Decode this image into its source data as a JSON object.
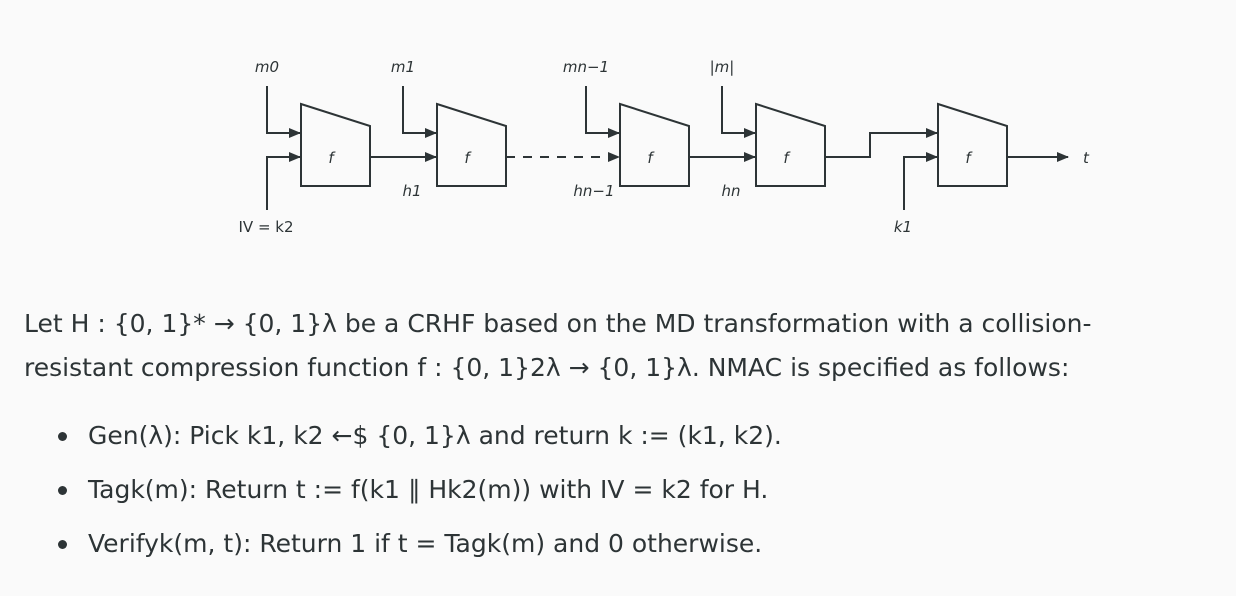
{
  "diagram": {
    "inputs": [
      "m0",
      "m1",
      "mn−1",
      "|m|"
    ],
    "box_label": "f",
    "iv_label": "IV = k2",
    "chain_labels": [
      "h1",
      "hn−1",
      "hn"
    ],
    "key_label": "k1",
    "output_label": "t"
  },
  "text": {
    "intro_1": "Let H : {0, 1}* → {0, 1}λ be a CRHF based on the MD transformation with a collision-",
    "intro_2": "resistant compression function f : {0, 1}2λ → {0, 1}λ. NMAC is specified as follows:",
    "bullets": [
      "Gen(λ): Pick k1, k2 ←$ {0, 1}λ and return k := (k1, k2).",
      "Tagk(m): Return t := f(k1 ∥ Hk2(m)) with IV = k2 for H.",
      "Verifyk(m, t): Return 1 if t = Tagk(m) and 0 otherwise."
    ]
  },
  "colors": {
    "ink": "#2d3436",
    "background": "#fafafa"
  }
}
